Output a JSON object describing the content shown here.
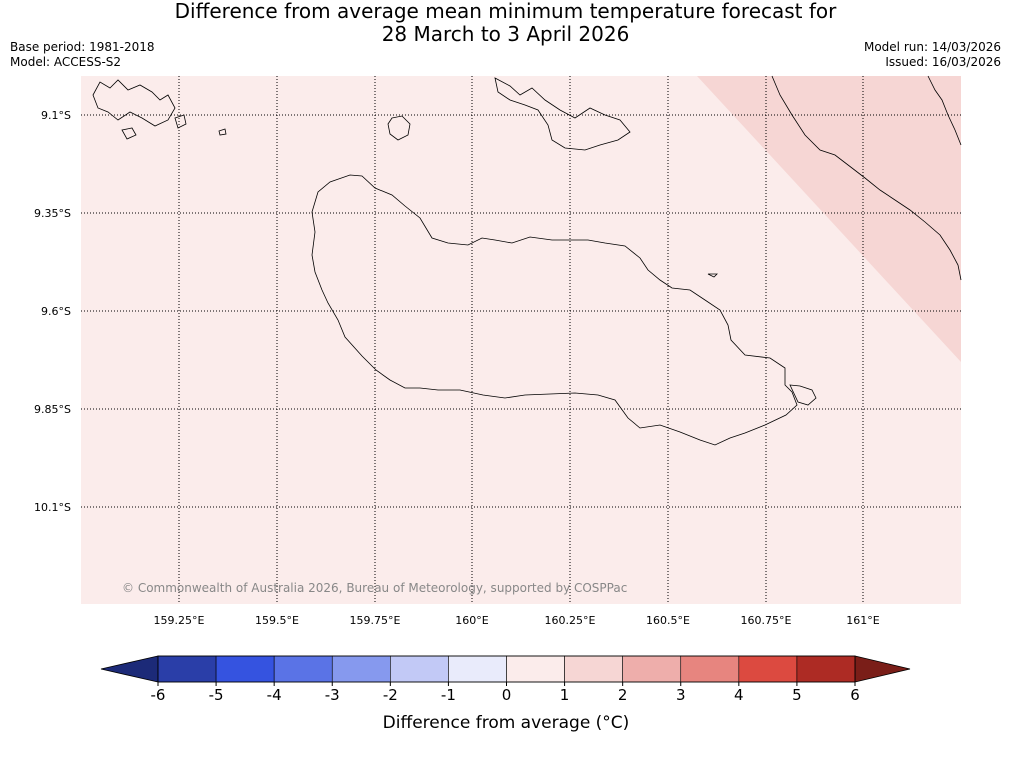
{
  "title": {
    "line1": "Difference from average mean minimum temperature forecast for",
    "line2": "28 March to 3 April 2026"
  },
  "meta": {
    "base_period": "Base period: 1981-2018",
    "model": "Model: ACCESS-S2",
    "model_run": "Model run: 14/03/2026",
    "issued": "Issued: 16/03/2026"
  },
  "map": {
    "lat_labels": [
      "9.1°S",
      "9.35°S",
      "9.6°S",
      "9.85°S",
      "10.1°S"
    ],
    "lon_labels": [
      "159.25°E",
      "159.5°E",
      "159.75°E",
      "160°E",
      "160.25°E",
      "160.5°E",
      "160.75°E",
      "161°E"
    ],
    "copyright": "© Commonwealth of Australia 2026, Bureau of Meteorology, supported by COSPPac",
    "base_fill_color": "#fbeceb",
    "region_fill_color": "#f6d6d4"
  },
  "colorbar": {
    "ticks": [
      "-6",
      "-5",
      "-4",
      "-3",
      "-2",
      "-1",
      "0",
      "1",
      "2",
      "3",
      "4",
      "5",
      "6"
    ],
    "label": "Difference from average (°C)",
    "colors": [
      "#2a3ea8",
      "#3553e0",
      "#5a73e6",
      "#8699ee",
      "#c2c9f6",
      "#e9ebfb",
      "#fbeceb",
      "#f6d6d4",
      "#eeaeab",
      "#e7857f",
      "#dc4a40",
      "#ad2b24"
    ],
    "low_extend_color": "#1c2a78",
    "high_extend_color": "#7a1e18"
  }
}
